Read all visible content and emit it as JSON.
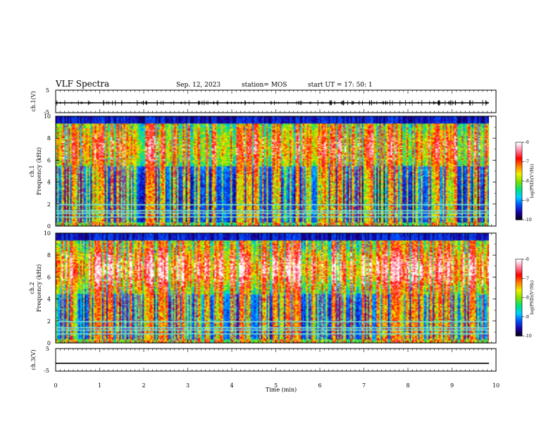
{
  "header": {
    "title": "VLF Spectra",
    "date": "Sep. 12, 2023",
    "station": "station= MOS",
    "start": "start  UT  =   17: 50:  1"
  },
  "chart_data": [
    {
      "type": "line",
      "panel": "ch1-waveform",
      "ylabel": "ch.1(V)",
      "ylim": [
        -5,
        5
      ],
      "yticks": [
        "5",
        "-5"
      ],
      "xlim": [
        0,
        10
      ],
      "signal_level": 0
    },
    {
      "type": "heatmap",
      "panel": "ch1-spectrogram",
      "ylabel": "ch.1\nFrequency (kHz)",
      "ylim": [
        0,
        10
      ],
      "yticks": [
        "0",
        "2",
        "4",
        "6",
        "8",
        "10"
      ],
      "xlim": [
        0,
        10
      ],
      "colorbar": {
        "label": "log(PSD)(V²/Hz)",
        "range": [
          -10,
          -6
        ],
        "ticks": [
          "-6",
          "-7",
          "-8",
          "-9",
          "-10"
        ],
        "colors": [
          "#000000",
          "#1a00a0",
          "#0050ff",
          "#00d0ff",
          "#00e080",
          "#80e000",
          "#f0f000",
          "#ff8000",
          "#ff0000",
          "#ff80a0",
          "#ffffff"
        ]
      },
      "description_band": "broadband sferics 0–10 kHz, strongest 6–9 kHz"
    },
    {
      "type": "heatmap",
      "panel": "ch2-spectrogram",
      "ylabel": "ch.2\nFrequency (kHz)",
      "ylim": [
        0,
        10
      ],
      "yticks": [
        "0",
        "2",
        "4",
        "6",
        "8",
        "10"
      ],
      "xlim": [
        0,
        10
      ],
      "colorbar": {
        "label": "log(PSD)(V²/Hz)",
        "range": [
          -10,
          -6
        ],
        "ticks": [
          "-6",
          "-7",
          "-8",
          "-9",
          "-10"
        ],
        "colors": [
          "#000000",
          "#1a00a0",
          "#0050ff",
          "#00d0ff",
          "#00e080",
          "#80e000",
          "#f0f000",
          "#ff8000",
          "#ff0000",
          "#ff80a0",
          "#ffffff"
        ]
      }
    },
    {
      "type": "line",
      "panel": "ch3-waveform",
      "ylabel": "ch.3(V)",
      "ylim": [
        -5,
        5
      ],
      "yticks": [
        "5",
        "-5"
      ],
      "xlim": [
        0,
        10
      ],
      "signal_level": -1.5
    }
  ],
  "xaxis": {
    "label": "Time (min)",
    "ticks": [
      "0",
      "1",
      "2",
      "3",
      "4",
      "5",
      "6",
      "7",
      "8",
      "9",
      "10"
    ]
  }
}
